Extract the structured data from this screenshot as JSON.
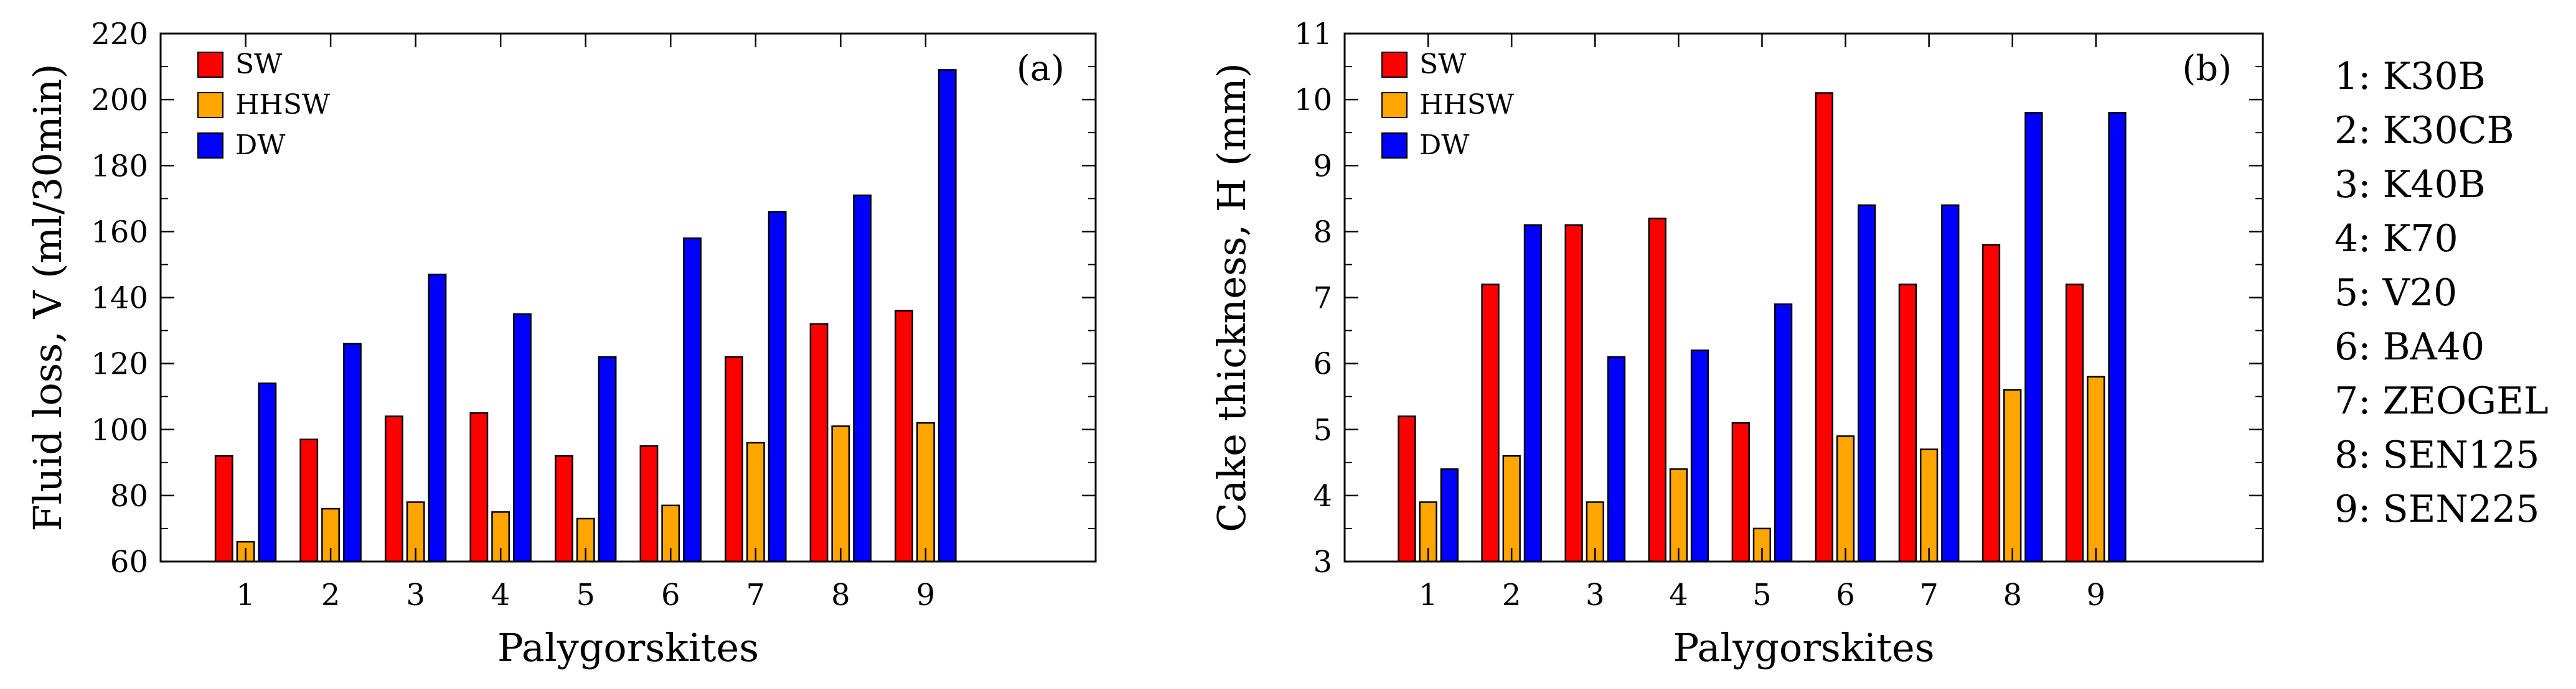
{
  "chart_data": [
    {
      "id": "a",
      "type": "bar",
      "panel_label": "(a)",
      "categories": [
        "1",
        "2",
        "3",
        "4",
        "5",
        "6",
        "7",
        "8",
        "9"
      ],
      "series": [
        {
          "name": "SW",
          "color": "#ff0000",
          "values": [
            92,
            97,
            104,
            105,
            92,
            95,
            122,
            132,
            136
          ]
        },
        {
          "name": "HHSW",
          "color": "#ffa500",
          "values": [
            66,
            76,
            78,
            75,
            73,
            77,
            96,
            101,
            102
          ]
        },
        {
          "name": "DW",
          "color": "#0000ff",
          "values": [
            114,
            126,
            147,
            135,
            122,
            158,
            166,
            171,
            209
          ]
        }
      ],
      "xlabel": "Palygorskites",
      "ylabel": "Fluid loss, V (ml/30min)",
      "ylim": [
        60,
        220
      ],
      "yticks": [
        60,
        80,
        100,
        120,
        140,
        160,
        180,
        200,
        220
      ],
      "legend_position": "top-left"
    },
    {
      "id": "b",
      "type": "bar",
      "panel_label": "(b)",
      "categories": [
        "1",
        "2",
        "3",
        "4",
        "5",
        "6",
        "7",
        "8",
        "9"
      ],
      "series": [
        {
          "name": "SW",
          "color": "#ff0000",
          "values": [
            5.2,
            7.2,
            8.1,
            8.2,
            5.1,
            10.1,
            7.2,
            7.8,
            7.2
          ]
        },
        {
          "name": "HHSW",
          "color": "#ffa500",
          "values": [
            3.9,
            4.6,
            3.9,
            4.4,
            3.5,
            4.9,
            4.7,
            5.6,
            5.8
          ]
        },
        {
          "name": "DW",
          "color": "#0000ff",
          "values": [
            4.4,
            8.1,
            6.1,
            6.2,
            6.9,
            8.4,
            8.4,
            9.8,
            9.8
          ]
        }
      ],
      "xlabel": "Palygorskites",
      "ylabel": "Cake thickness, H (mm)",
      "ylim": [
        3,
        11
      ],
      "yticks": [
        3,
        4,
        5,
        6,
        7,
        8,
        9,
        10,
        11
      ],
      "legend_position": "top-left"
    }
  ],
  "key_legend": [
    "1: K30B",
    "2: K30CB",
    "3: K40B",
    "4: K70",
    "5: V20",
    "6: BA40",
    "7: ZEOGEL",
    "8: SEN125",
    "9: SEN225"
  ]
}
